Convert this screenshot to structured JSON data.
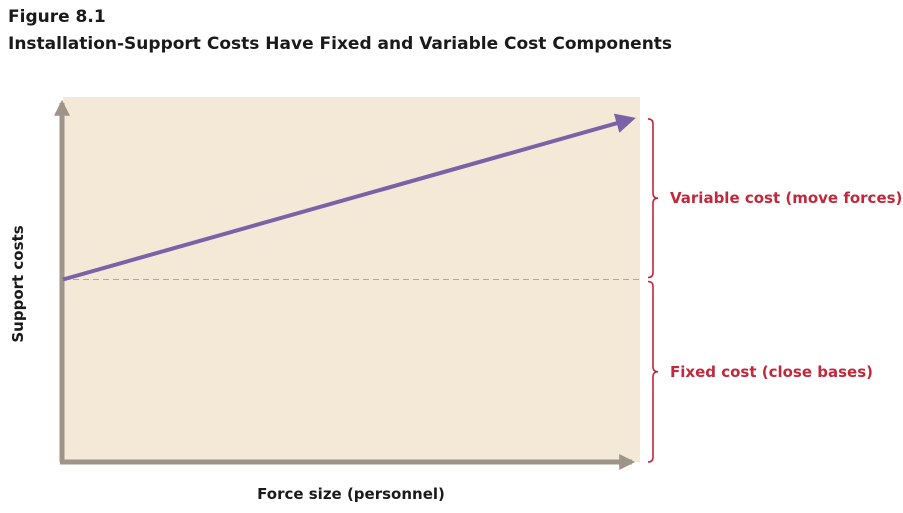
{
  "figure_label": "Figure 8.1",
  "title": "Installation-Support Costs Have Fixed and Variable Cost Components",
  "colors": {
    "plot_background": "#f3e9d6",
    "axis": "#9e948a",
    "line": "#7b62a8",
    "fixed_level": "#b0a79e",
    "annotation": "#c0283c"
  },
  "chart_data": {
    "type": "line",
    "title": "Installation-Support Costs Have Fixed and Variable Cost Components",
    "xlabel": "Force size (personnel)",
    "ylabel": "Support costs",
    "xlim": [
      0,
      1
    ],
    "ylim": [
      0,
      1
    ],
    "grid": false,
    "tick_labels": false,
    "series": [
      {
        "x": [
          0,
          1
        ],
        "y": [
          0.5,
          0.94
        ]
      }
    ],
    "fixed_level": 0.5,
    "annotations": [
      {
        "text": "Variable cost (move forces)",
        "y_range": [
          0.5,
          0.94
        ]
      },
      {
        "text": "Fixed cost (close bases)",
        "y_range": [
          0,
          0.5
        ]
      }
    ]
  }
}
